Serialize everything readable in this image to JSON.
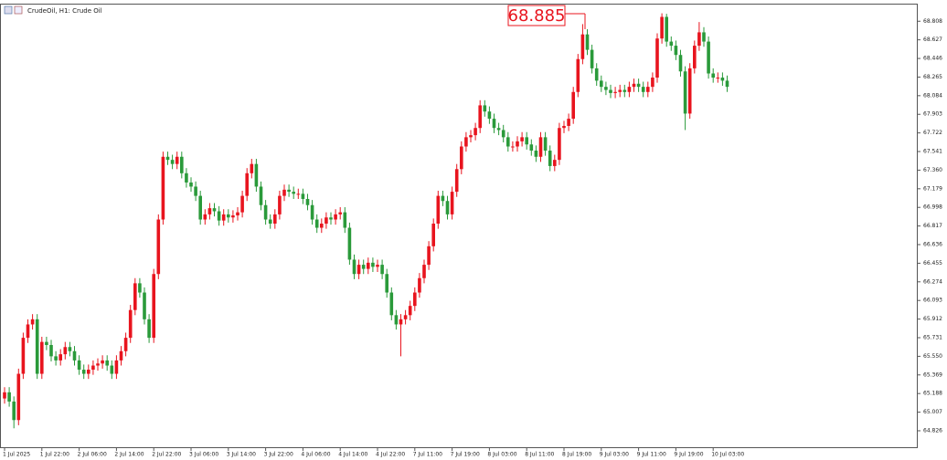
{
  "chart_data": {
    "type": "candlestick",
    "title": "CrudeOil, H1:  Crude Oil",
    "annotation": "68.885",
    "up_color": "#e8141e",
    "down_color": "#2a9a3a",
    "ylim": [
      64.666,
      68.97
    ],
    "yticks": [
      68.808,
      68.627,
      68.446,
      68.265,
      68.084,
      67.903,
      67.722,
      67.541,
      {
        "value": 67.36,
        "label": "67.360"
      },
      67.179,
      66.998,
      66.817,
      66.636,
      66.455,
      66.274,
      66.093,
      65.912,
      65.731,
      {
        "value": 65.55,
        "label": "65.550"
      },
      65.369,
      65.188,
      65.007,
      64.826
    ],
    "categories": [
      "1 Jul 2025",
      null,
      null,
      null,
      null,
      null,
      null,
      null,
      "1 Jul 22:00",
      null,
      null,
      null,
      null,
      null,
      null,
      null,
      "2 Jul 06:00",
      null,
      null,
      null,
      null,
      null,
      null,
      null,
      "2 Jul 14:00",
      null,
      null,
      null,
      null,
      null,
      null,
      null,
      "2 Jul 22:00",
      null,
      null,
      null,
      null,
      null,
      null,
      null,
      "3 Jul 06:00",
      null,
      null,
      null,
      null,
      null,
      null,
      null,
      "3 Jul 14:00",
      null,
      null,
      null,
      null,
      null,
      null,
      null,
      "3 Jul 22:00",
      null,
      null,
      null,
      null,
      null,
      null,
      null,
      "4 Jul 06:00",
      null,
      null,
      null,
      null,
      null,
      null,
      null,
      "4 Jul 14:00",
      null,
      null,
      null,
      null,
      null,
      null,
      null,
      "4 Jul 22:00",
      null,
      null,
      null,
      null,
      null,
      null,
      null,
      "7 Jul 11:00",
      null,
      null,
      null,
      null,
      null,
      null,
      null,
      "7 Jul 19:00",
      null,
      null,
      null,
      null,
      null,
      null,
      null,
      "8 Jul 03:00",
      null,
      null,
      null,
      null,
      null,
      null,
      null,
      "8 Jul 11:00",
      null,
      null,
      null,
      null,
      null,
      null,
      null,
      "8 Jul 19:00",
      null,
      null,
      null,
      null,
      null,
      null,
      null,
      "9 Jul 03:00",
      null,
      null,
      null,
      null,
      null,
      null,
      null,
      "9 Jul 11:00",
      null,
      null,
      null,
      null,
      null,
      null,
      null,
      "9 Jul 19:00",
      null,
      null,
      null,
      null,
      null,
      null,
      null,
      "10 Jul 03:00",
      null,
      null,
      null
    ],
    "open": [
      65.14,
      65.2,
      65.11,
      64.93,
      65.38,
      65.73,
      65.86,
      65.91,
      65.38,
      65.69,
      65.66,
      65.55,
      65.51,
      65.57,
      65.64,
      65.6,
      65.51,
      65.42,
      65.38,
      65.42,
      65.46,
      65.48,
      65.51,
      65.46,
      65.38,
      65.51,
      65.6,
      65.73,
      66.0,
      66.26,
      66.17,
      65.91,
      65.73,
      66.35,
      66.88,
      67.49,
      67.46,
      67.42,
      67.49,
      67.33,
      67.24,
      67.2,
      67.11,
      66.88,
      66.93,
      66.99,
      66.96,
      66.87,
      66.93,
      66.9,
      66.92,
      66.95,
      67.11,
      67.33,
      67.42,
      67.2,
      67.02,
      66.88,
      66.84,
      66.93,
      67.11,
      67.17,
      67.15,
      67.13,
      67.13,
      67.08,
      67.02,
      66.88,
      66.8,
      66.84,
      66.9,
      66.88,
      66.93,
      66.95,
      66.8,
      66.49,
      66.35,
      66.44,
      66.4,
      66.46,
      66.42,
      66.44,
      66.35,
      66.17,
      65.95,
      65.86,
      65.91,
      65.95,
      66.04,
      66.17,
      66.31,
      66.44,
      66.62,
      66.84,
      67.11,
      67.06,
      66.93,
      67.15,
      67.37,
      67.59,
      67.68,
      67.7,
      67.77,
      67.99,
      67.93,
      67.86,
      67.77,
      67.75,
      67.68,
      67.59,
      67.59,
      67.64,
      67.68,
      67.61,
      67.55,
      67.49,
      67.68,
      67.55,
      67.4,
      67.46,
      67.77,
      67.79,
      67.86,
      68.12,
      68.44,
      68.68,
      68.53,
      68.35,
      68.23,
      68.17,
      68.14,
      68.11,
      68.12,
      68.14,
      68.12,
      68.17,
      68.2,
      68.17,
      68.12,
      68.17,
      68.26,
      68.64,
      68.85,
      68.61,
      68.57,
      68.48,
      68.32,
      67.91,
      68.35,
      68.57,
      68.7,
      68.61,
      68.3,
      68.26,
      68.26,
      68.23
    ],
    "high": [
      65.25,
      65.25,
      65.16,
      65.43,
      65.78,
      65.91,
      65.96,
      65.96,
      65.74,
      65.74,
      65.71,
      65.6,
      65.62,
      65.69,
      65.69,
      65.65,
      65.56,
      65.47,
      65.47,
      65.51,
      65.53,
      65.56,
      65.56,
      65.51,
      65.56,
      65.65,
      65.78,
      66.05,
      66.31,
      66.31,
      66.22,
      65.96,
      66.4,
      66.93,
      67.54,
      67.54,
      67.51,
      67.54,
      67.54,
      67.38,
      67.29,
      67.25,
      67.16,
      66.98,
      67.04,
      67.04,
      67.01,
      66.98,
      66.98,
      66.97,
      67.0,
      67.16,
      67.38,
      67.47,
      67.47,
      67.25,
      67.07,
      66.93,
      66.98,
      67.16,
      67.22,
      67.22,
      67.2,
      67.18,
      67.18,
      67.13,
      67.07,
      66.93,
      66.89,
      66.95,
      66.95,
      66.98,
      67.0,
      67.0,
      66.85,
      66.54,
      66.49,
      66.49,
      66.51,
      66.51,
      66.49,
      66.49,
      66.4,
      66.22,
      66.0,
      65.96,
      66.0,
      66.09,
      66.22,
      66.36,
      66.49,
      66.67,
      66.89,
      67.16,
      67.16,
      67.11,
      67.2,
      67.42,
      67.64,
      67.73,
      67.75,
      67.82,
      68.04,
      68.04,
      67.98,
      67.91,
      67.82,
      67.8,
      67.73,
      67.64,
      67.69,
      67.73,
      67.73,
      67.66,
      67.6,
      67.73,
      67.73,
      67.6,
      67.51,
      67.82,
      67.84,
      67.91,
      68.17,
      68.49,
      68.78,
      68.73,
      68.58,
      68.4,
      68.28,
      68.22,
      68.19,
      68.17,
      68.19,
      68.19,
      68.22,
      68.25,
      68.25,
      68.22,
      68.22,
      68.31,
      68.69,
      68.885,
      68.88,
      68.66,
      68.62,
      68.53,
      68.37,
      68.4,
      68.62,
      68.8,
      68.75,
      68.66,
      68.35,
      68.31,
      68.31,
      68.28
    ],
    "low": [
      65.09,
      65.06,
      64.85,
      64.88,
      65.33,
      65.68,
      65.81,
      65.33,
      65.33,
      65.61,
      65.5,
      65.46,
      65.46,
      65.52,
      65.55,
      65.46,
      65.37,
      65.33,
      65.33,
      65.37,
      65.41,
      65.43,
      65.41,
      65.33,
      65.33,
      65.46,
      65.55,
      65.68,
      65.95,
      66.12,
      65.86,
      65.68,
      65.68,
      66.3,
      66.83,
      67.41,
      67.37,
      67.37,
      67.28,
      67.19,
      67.15,
      67.06,
      66.83,
      66.83,
      66.88,
      66.91,
      66.82,
      66.82,
      66.85,
      66.85,
      66.87,
      66.9,
      67.06,
      67.28,
      67.15,
      66.97,
      66.83,
      66.79,
      66.79,
      66.88,
      67.06,
      67.1,
      67.08,
      67.08,
      67.03,
      66.97,
      66.83,
      66.75,
      66.75,
      66.79,
      66.83,
      66.83,
      66.88,
      66.75,
      66.44,
      66.3,
      66.3,
      66.35,
      66.35,
      66.37,
      66.37,
      66.3,
      66.12,
      65.9,
      65.81,
      65.55,
      65.86,
      65.9,
      65.99,
      66.12,
      66.26,
      66.39,
      66.57,
      66.79,
      67.01,
      66.88,
      66.88,
      67.1,
      67.32,
      67.54,
      67.63,
      67.65,
      67.72,
      67.88,
      67.81,
      67.72,
      67.7,
      67.63,
      67.54,
      67.54,
      67.54,
      67.59,
      67.56,
      67.5,
      67.44,
      67.44,
      67.5,
      67.35,
      67.35,
      67.41,
      67.72,
      67.74,
      67.81,
      68.07,
      68.39,
      68.48,
      68.3,
      68.18,
      68.12,
      68.09,
      68.06,
      68.06,
      68.07,
      68.07,
      68.07,
      68.12,
      68.12,
      68.07,
      68.07,
      68.12,
      68.21,
      68.59,
      68.56,
      68.52,
      68.43,
      68.27,
      67.75,
      67.86,
      68.3,
      68.52,
      68.56,
      68.25,
      68.21,
      68.21,
      68.18,
      68.12
    ],
    "close": [
      65.2,
      65.11,
      64.93,
      65.38,
      65.73,
      65.86,
      65.91,
      65.38,
      65.69,
      65.66,
      65.55,
      65.51,
      65.57,
      65.64,
      65.6,
      65.51,
      65.42,
      65.38,
      65.42,
      65.46,
      65.48,
      65.51,
      65.46,
      65.38,
      65.51,
      65.6,
      65.73,
      66.0,
      66.26,
      66.17,
      65.91,
      65.73,
      66.35,
      66.88,
      67.49,
      67.46,
      67.42,
      67.49,
      67.33,
      67.24,
      67.2,
      67.11,
      66.88,
      66.93,
      66.99,
      66.96,
      66.87,
      66.93,
      66.9,
      66.92,
      66.95,
      67.11,
      67.33,
      67.42,
      67.2,
      67.02,
      66.88,
      66.84,
      66.93,
      67.11,
      67.17,
      67.15,
      67.13,
      67.13,
      67.08,
      67.02,
      66.88,
      66.8,
      66.84,
      66.9,
      66.88,
      66.93,
      66.95,
      66.8,
      66.49,
      66.35,
      66.44,
      66.4,
      66.46,
      66.42,
      66.44,
      66.35,
      66.17,
      65.95,
      65.86,
      65.91,
      65.95,
      66.04,
      66.17,
      66.31,
      66.44,
      66.62,
      66.84,
      67.11,
      67.06,
      66.93,
      67.15,
      67.37,
      67.59,
      67.68,
      67.7,
      67.77,
      67.99,
      67.93,
      67.86,
      67.77,
      67.75,
      67.68,
      67.59,
      67.59,
      67.64,
      67.68,
      67.61,
      67.55,
      67.49,
      67.68,
      67.55,
      67.4,
      67.46,
      67.77,
      67.79,
      67.86,
      68.12,
      68.44,
      68.68,
      68.53,
      68.35,
      68.23,
      68.17,
      68.14,
      68.11,
      68.12,
      68.14,
      68.12,
      68.17,
      68.2,
      68.17,
      68.12,
      68.17,
      68.26,
      68.64,
      68.85,
      68.61,
      68.57,
      68.48,
      68.32,
      67.91,
      68.35,
      68.57,
      68.7,
      68.61,
      68.3,
      68.26,
      68.26,
      68.23,
      68.17
    ]
  }
}
